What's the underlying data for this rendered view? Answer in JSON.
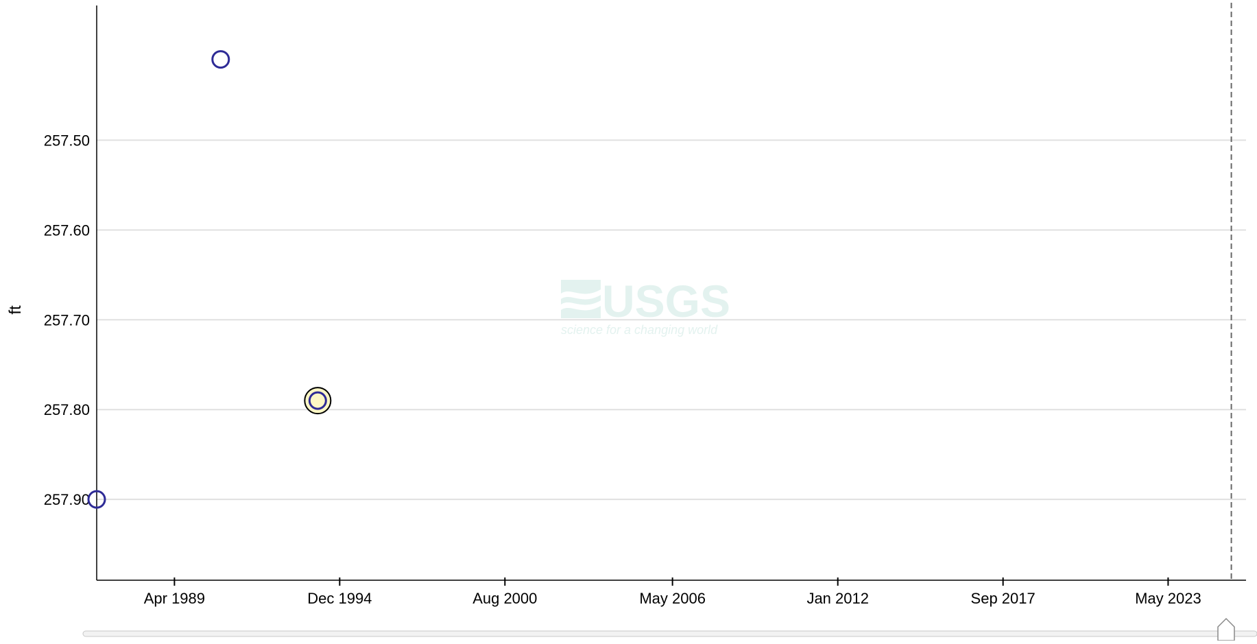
{
  "chart_data": {
    "type": "scatter",
    "ylabel": "ft",
    "xlabel": "",
    "y_inverted": true,
    "ylim": [
      257.35,
      257.99
    ],
    "xlim": [
      "1986-08-01",
      "2026-01-01"
    ],
    "y_ticks": [
      "257.50",
      "257.60",
      "257.70",
      "257.80",
      "257.90"
    ],
    "x_ticks": [
      {
        "label": "Apr 1989",
        "date": "1989-04-01"
      },
      {
        "label": "Dec 1994",
        "date": "1994-12-01"
      },
      {
        "label": "Aug 2000",
        "date": "2000-08-01"
      },
      {
        "label": "May 2006",
        "date": "2006-05-01"
      },
      {
        "label": "Jan 2012",
        "date": "2012-01-01"
      },
      {
        "label": "Sep 2017",
        "date": "2017-09-01"
      },
      {
        "label": "May 2023",
        "date": "2023-05-01"
      }
    ],
    "grid": "horizontal",
    "points": [
      {
        "date": "1986-08-01",
        "value": 257.9,
        "style": "open"
      },
      {
        "date": "1990-11-01",
        "value": 257.41,
        "style": "open"
      },
      {
        "date": "1994-03-01",
        "value": 257.79,
        "style": "highlighted"
      }
    ],
    "reference_line_date": "2025-07-01",
    "colors": {
      "point_stroke": "#2e2b96",
      "highlight_fill": "#fdf7c5",
      "highlight_ring": "#000000",
      "grid": "#e0e0e0",
      "axis": "#000000",
      "reference_line": "#666666",
      "watermark": "#e3f2ef"
    }
  },
  "watermark": {
    "text": "USGS",
    "tagline": "science for a changing world"
  },
  "range_slider": {
    "handle_icon": "slider-handle-icon"
  }
}
